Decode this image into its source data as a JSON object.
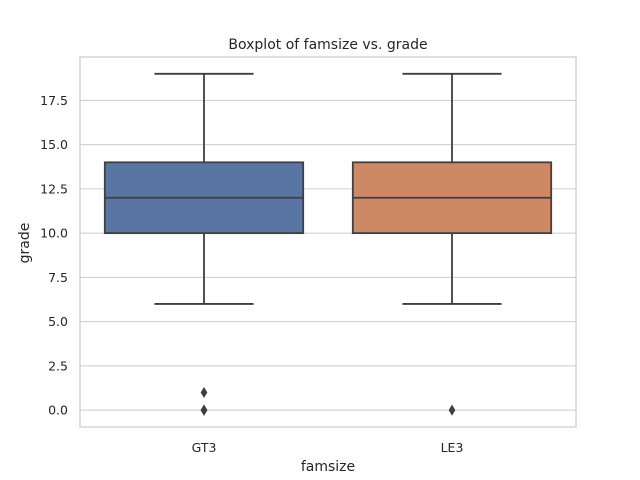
{
  "chart_data": {
    "type": "box",
    "title": "Boxplot of famsize vs. grade",
    "xlabel": "famsize",
    "ylabel": "grade",
    "categories": [
      "GT3",
      "LE3"
    ],
    "ylim": [
      -0.95,
      19.95
    ],
    "yticks": [
      0.0,
      2.5,
      5.0,
      7.5,
      10.0,
      12.5,
      15.0,
      17.5
    ],
    "ytick_labels": [
      "0.0",
      "2.5",
      "5.0",
      "7.5",
      "10.0",
      "12.5",
      "15.0",
      "17.5"
    ],
    "grid": "y",
    "boxes": [
      {
        "category": "GT3",
        "whisker_low": 6,
        "q1": 10,
        "median": 12,
        "q3": 14,
        "whisker_high": 19,
        "outliers": [
          0,
          0,
          0,
          1
        ],
        "color": "#5975a4"
      },
      {
        "category": "LE3",
        "whisker_low": 6,
        "q1": 10,
        "median": 12,
        "q3": 14,
        "whisker_high": 19,
        "outliers": [
          0
        ],
        "color": "#cc8963"
      }
    ]
  }
}
